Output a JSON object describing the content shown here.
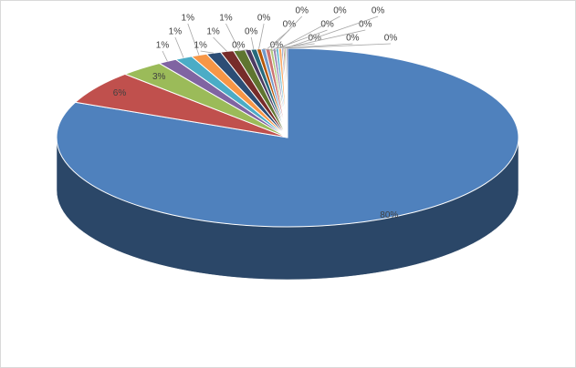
{
  "chart_data": {
    "type": "pie3d",
    "values": [
      80,
      6,
      3,
      1.3,
      1.2,
      1.1,
      1.0,
      0.9,
      0.8,
      0.4,
      0.4,
      0.3,
      0.3,
      0.3,
      0.2,
      0.2,
      0.2,
      0.2,
      0.1,
      0.1,
      0.1,
      0.1
    ],
    "value_labels": [
      "80%",
      "6%",
      "3%",
      "1%",
      "1%",
      "1%",
      "1%",
      "1%",
      "1%",
      "0%",
      "0%",
      "0%",
      "0%",
      "0%",
      "0%",
      "0%",
      "0%",
      "0%",
      "0%",
      "0%",
      "0%",
      "0%"
    ],
    "colors": [
      "#4f81bd",
      "#c0504d",
      "#9bbb59",
      "#8064a2",
      "#4bacc6",
      "#f79646",
      "#2c4d75",
      "#772c2a",
      "#5f7530",
      "#4d3b62",
      "#276a7c",
      "#b65708",
      "#729aca",
      "#cd7371",
      "#afc97a",
      "#9983b5",
      "#6fbdd1",
      "#f9ab6b",
      "#3a67a0",
      "#9e3b38",
      "#7f9c40",
      "#664f84"
    ]
  }
}
